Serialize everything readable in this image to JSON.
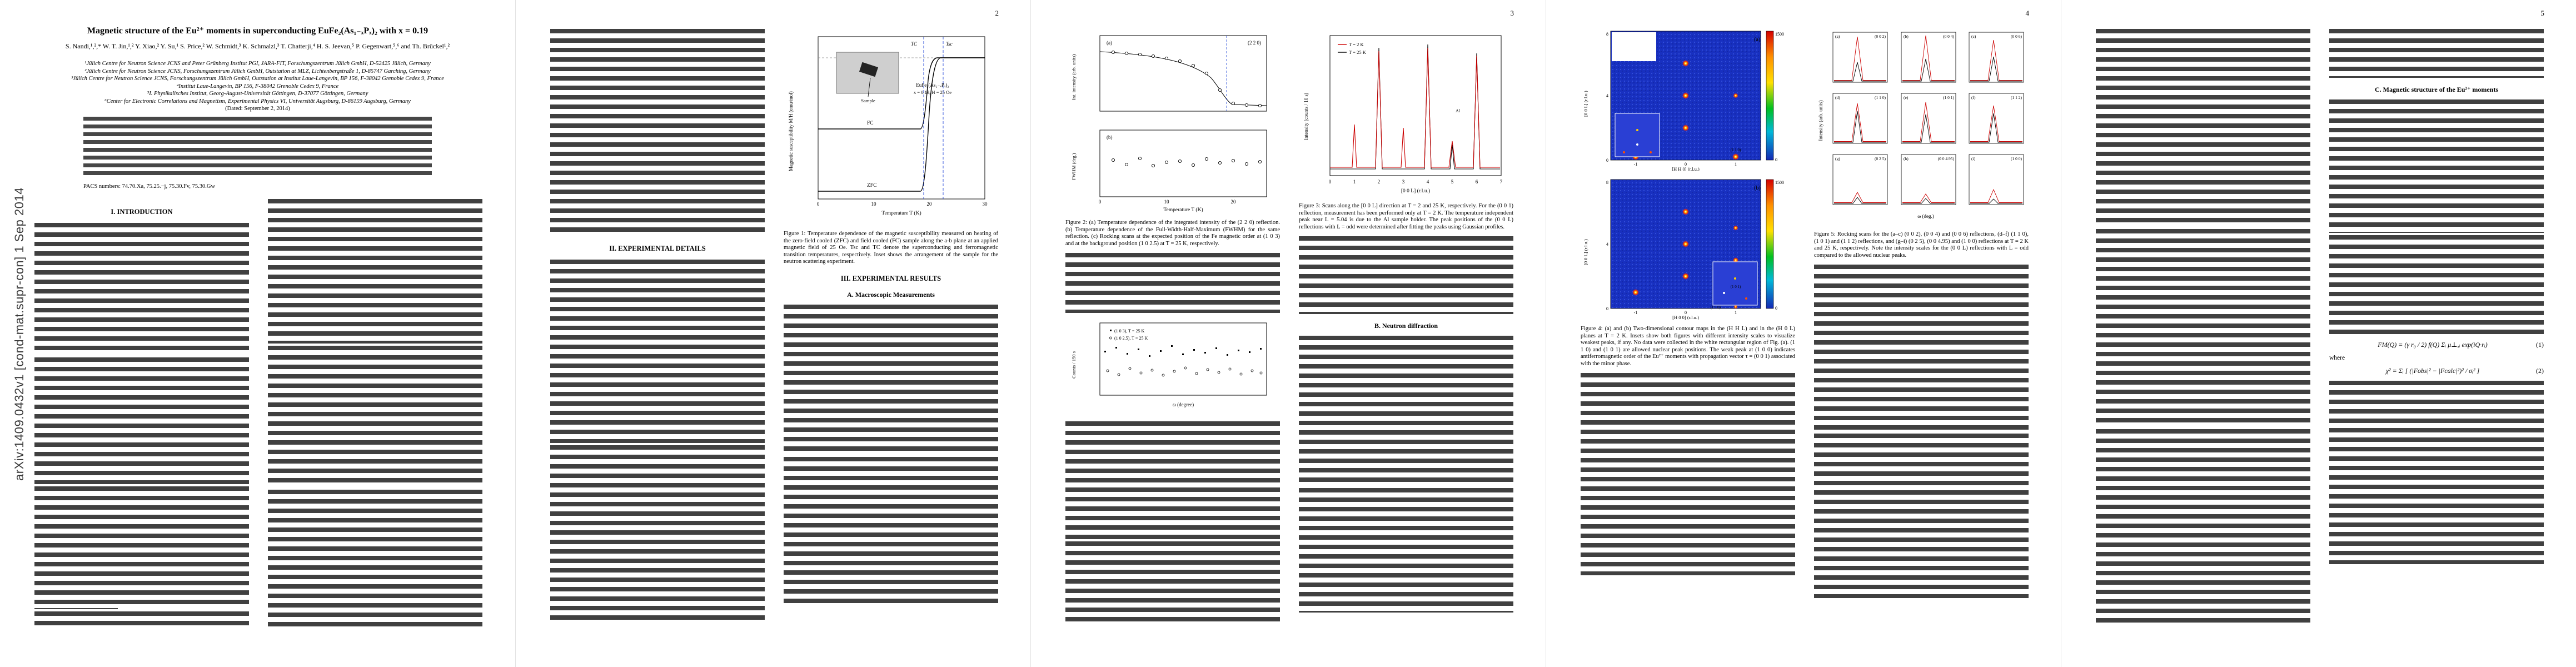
{
  "arxiv_stamp": "arXiv:1409.0432v1  [cond-mat.supr-con]  1 Sep 2014",
  "paper": {
    "title": "Magnetic structure of the Eu²⁺ moments in superconducting EuFe₂(As₁₋ₓPₓ)₂ with x = 0.19",
    "authors": "S. Nandi,¹,²,* W. T. Jin,¹,² Y. Xiao,² Y. Su,¹ S. Price,² W. Schmidt,³ K. Schmalzl,³ T. Chatterji,⁴ H. S. Jeevan,⁵ P. Gegenwart,⁵,⁶ and Th. Brückel¹,²",
    "affiliations": [
      "¹Jülich Centre for Neutron Science JCNS and Peter Grünberg Institut PGI, JARA-FIT, Forschungszentrum Jülich GmbH, D-52425 Jülich, Germany",
      "²Jülich Centre for Neutron Science JCNS, Forschungszentrum Jülich GmbH, Outstation at MLZ, Lichtenbergstraße 1, D-85747 Garching, Germany",
      "³Jülich Centre for Neutron Science JCNS, Forschungszentrum Jülich GmbH, Outstation at Institut Laue-Langevin, BP 156, F-38042 Grenoble Cedex 9, France",
      "⁴Institut Laue-Langevin, BP 156, F-38042 Grenoble Cedex 9, France",
      "⁵I. Physikalisches Institut, Georg-August-Universität Göttingen, D-37077 Göttingen, Germany",
      "⁶Center for Electronic Correlations and Magnetism, Experimental Physics VI, Universität Augsburg, D-86159 Augsburg, Germany"
    ],
    "dated": "(Dated: September 2, 2014)",
    "pacs": "PACS numbers: 74.70.Xa, 75.25.−j, 75.30.Fv, 75.30.Gw"
  },
  "pages": {
    "p2": "2",
    "p3": "3",
    "p4": "4",
    "p5": "5"
  },
  "sections": {
    "intro": "I.   INTRODUCTION",
    "exp": "II.   EXPERIMENTAL DETAILS",
    "results": "III.   EXPERIMENTAL RESULTS",
    "macro": "A.   Macroscopic Measurements",
    "neutron": "B.   Neutron diffraction",
    "magstruct": "C.   Magnetic structure of the Eu²⁺ moments"
  },
  "figures": {
    "fig1": {
      "caption": "Figure 1: Temperature dependence of the magnetic susceptibility measured on heating of the zero-field cooled (ZFC) and field cooled (FC) sample along the a-b plane at an applied magnetic field of 25 Oe. Tsc and TC denote the superconducting and ferromagnetic transition temperatures, respectively. Inset shows the arrangement of the sample for the neutron scattering experiment.",
      "ylabel": "Magnetic susceptibility M/H (emu/mol)",
      "xlabel": "Temperature T (K)",
      "zfc": "ZFC",
      "fc": "FC",
      "tsc": "Tsc",
      "tc": "TC",
      "sample": "Sample",
      "compound": "EuFe₂(As₁₋ₓPₓ)₂",
      "params": "x = 0.19,  H = 25 Oe",
      "ticks": [
        "0",
        "10",
        "20",
        "30"
      ]
    },
    "fig2": {
      "caption": "Figure 2: (a) Temperature dependence of the integrated intensity of the (2 2 0) reflection. (b) Temperature dependence of the Full-Width-Half-Maximum (FWHM) for the same reflection. (c) Rocking scans at the expected position of the Fe magnetic order at (1 0 3) and at the background position (1 0 2.5) at T = 25 K, respectively.",
      "pa": "(a)",
      "pb": "(b)",
      "ya": "Int. intensity (arb. units)",
      "yb": "FWHM (deg.)",
      "xlabel": "Temperature T (K)",
      "refl": "(2 2 0)",
      "ticks": [
        "0",
        "10",
        "20"
      ]
    },
    "fig2c": {
      "ylabel": "Counts / 150 s",
      "xlabel": "ω (degree)",
      "leg1": "(1 0 3),  T = 25 K",
      "leg2": "(1 0 2.5),  T = 25 K"
    },
    "fig3": {
      "caption": "Figure 3: Scans along the [0 0 L] direction at T = 2 and 25 K, respectively. For the (0 0 1) reflection, measurement has been performed only at T = 2 K. The temperature independent peak near L = 5.04 is due to the Al sample holder. The peak positions of the (0 0 L) reflections with L = odd were determined after fitting the peaks using Gaussian profiles.",
      "ylabel": "Intensity (counts / 10 s)",
      "xlabel": "[0 0 L] (r.l.u.)",
      "leg2k": "T = 2 K",
      "leg25k": "T = 25 K",
      "al": "Al",
      "ticks": [
        "0",
        "1",
        "2",
        "3",
        "4",
        "5",
        "6",
        "7"
      ]
    },
    "fig4": {
      "caption": "Figure 4: (a) and (b) Two-dimensional contour maps in the (H H L) and in the (H 0 L) planes at T = 2 K. Insets show both figures with different intensity scales to visualize weakest peaks, if any. No data were collected in the white rectangular region of Fig. (a). (1 1 0) and (1 0 1) are allowed nuclear peak positions. The weak peak at (1 0 0) indicates antiferromagnetic order of the Eu²⁺ moments with propagation vector τ = (0 0 1) associated with the minor phase.",
      "pa": "(a)",
      "pb": "(b)",
      "ya": "[0 0 L] (r.l.u.)",
      "xa": "[H H 0] (r.l.u.)",
      "xb": "[H 0 0] (r.l.u.)",
      "cmax": "1500",
      "cmin": "0",
      "ann_a": "(1 1 0)",
      "ann_b": "(1 0 1)",
      "ann_b2": "(1 0 0)",
      "xt": [
        "-1",
        "0",
        "1"
      ],
      "yt": [
        "0",
        "4",
        "8"
      ]
    },
    "fig5": {
      "caption": "Figure 5: Rocking scans for the (a–c) (0 0 2), (0 0 4) and (0 0 6) reflections, (d–f) (1 1 0), (1 0 1) and (1 1 2) reflections, and (g–i) (0 2 5), (0 0 4.95) and (1 0 0) reflections at T = 2 K and 25 K, respectively. Note the intensity scales for the (0 0 L) reflections with L = odd compared to the allowed nuclear peaks.",
      "xlabel": "ω (deg.)",
      "ylabel": "Intensity (arb. units)",
      "panels": [
        {
          "letter": "(a)",
          "label": "(0 0 2)",
          "red": 80,
          "black": 34
        },
        {
          "letter": "(b)",
          "label": "(0 0 4)",
          "red": 82,
          "black": 40
        },
        {
          "letter": "(c)",
          "label": "(0 0 6)",
          "red": 74,
          "black": 44
        },
        {
          "letter": "(d)",
          "label": "(1 1 0)",
          "red": 70,
          "black": 56
        },
        {
          "letter": "(e)",
          "label": "(1 0 1)",
          "red": 72,
          "black": 50
        },
        {
          "letter": "(f)",
          "label": "(1 1 2)",
          "red": 66,
          "black": 52
        },
        {
          "letter": "(g)",
          "label": "(0 2 5)",
          "red": 20,
          "black": 11
        },
        {
          "letter": "(h)",
          "label": "(0 0 4.95)",
          "red": 17,
          "black": 9
        },
        {
          "letter": "(i)",
          "label": "(1 0 0)",
          "red": 25,
          "black": 8
        }
      ]
    }
  },
  "equations": {
    "eq1": "FM(Q) = (γ r₀ / 2) f(Q) Σᵢ μ⊥,ᵢ exp(iQ·rᵢ)",
    "eq1no": "(1)",
    "where": "where",
    "eq2": "χ² = Σᵢ [ (|Fobs|² − |Fcalc|²)² / σᵢ² ]",
    "eq2no": "(2)"
  }
}
